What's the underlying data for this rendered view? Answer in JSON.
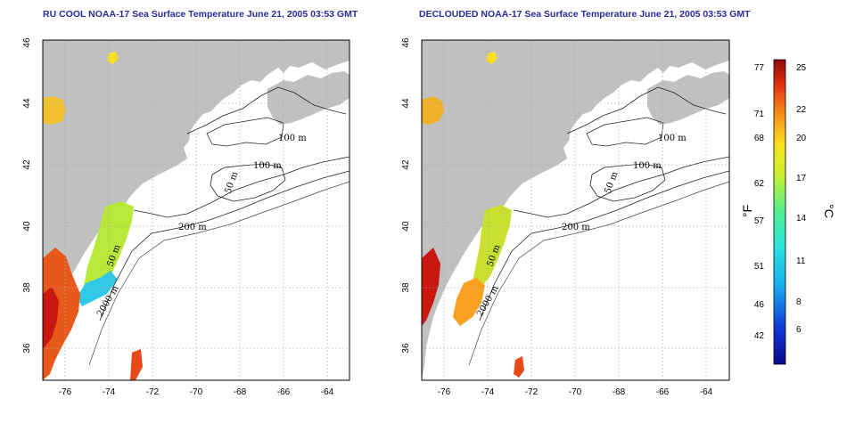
{
  "titles": {
    "left": "RU COOL NOAA-17 Sea Surface Temperature June 21, 2005 03:53 GMT",
    "right": "DECLOUDED NOAA-17 Sea Surface Temperature June 21, 2005 03:53 GMT"
  },
  "axes": {
    "lon_ticks": [
      "-76",
      "-74",
      "-72",
      "-70",
      "-68",
      "-66",
      "-64"
    ],
    "lat_ticks": [
      "36",
      "38",
      "40",
      "42",
      "44",
      "46"
    ]
  },
  "contour_labels": {
    "left": [
      "100 m",
      "100 m",
      "50 m",
      "200 m",
      "50 m",
      "2000 m"
    ],
    "right": [
      "100 m",
      "100 m",
      "50 m",
      "200 m",
      "50 m",
      "2000 m"
    ]
  },
  "colorbar": {
    "fahrenheit_ticks": [
      "77",
      "71",
      "68",
      "62",
      "57",
      "51",
      "46",
      "42"
    ],
    "celsius_ticks": [
      "25",
      "22",
      "20",
      "17",
      "14",
      "11",
      "8",
      "6"
    ],
    "unit_f": "°F",
    "unit_c": "°C"
  },
  "colors": {
    "land": "#c0c0c0",
    "ocean": "#ffffff",
    "title": "#2a2a9e",
    "grid": "#aaaaaa"
  }
}
